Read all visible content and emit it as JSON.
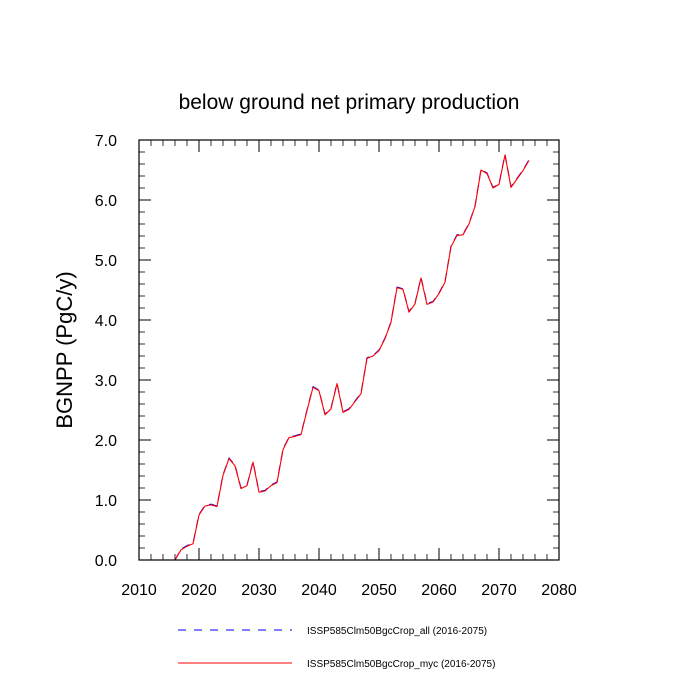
{
  "chart_data": {
    "type": "line",
    "title": "below ground net primary production",
    "ylabel": "BGNPP  (PgC/y)",
    "xlabel": "",
    "xlim": [
      2010,
      2080
    ],
    "ylim": [
      0.0,
      7.0
    ],
    "x_ticks": [
      2010,
      2020,
      2030,
      2040,
      2050,
      2060,
      2070,
      2080
    ],
    "x_tick_labels": [
      "2010",
      "2020",
      "2030",
      "2040",
      "2050",
      "2060",
      "2070",
      "2080"
    ],
    "y_ticks": [
      0,
      1,
      2,
      3,
      4,
      5,
      6,
      7
    ],
    "y_tick_labels": [
      "0.0",
      "1.0",
      "2.0",
      "3.0",
      "4.0",
      "5.0",
      "6.0",
      "7.0"
    ],
    "grid": false,
    "legend_position": "bottom",
    "x": [
      2016,
      2017,
      2018,
      2019,
      2020,
      2021,
      2022,
      2023,
      2024,
      2025,
      2026,
      2027,
      2028,
      2029,
      2030,
      2031,
      2032,
      2033,
      2034,
      2035,
      2036,
      2037,
      2038,
      2039,
      2040,
      2041,
      2042,
      2043,
      2044,
      2045,
      2046,
      2047,
      2048,
      2049,
      2050,
      2051,
      2052,
      2053,
      2054,
      2055,
      2056,
      2057,
      2058,
      2059,
      2060,
      2061,
      2062,
      2063,
      2064,
      2065,
      2066,
      2067,
      2068,
      2069,
      2070,
      2071,
      2072,
      2073,
      2074,
      2075
    ],
    "series": [
      {
        "name": "ISSP585Clm50BgcCrop_all (2016-2075)",
        "color": "#0000ff",
        "dash": "dashed",
        "values": [
          0.0,
          0.18,
          0.24,
          0.28,
          0.76,
          0.91,
          0.93,
          0.9,
          1.42,
          1.7,
          1.58,
          1.2,
          1.25,
          1.64,
          1.14,
          1.16,
          1.25,
          1.3,
          1.85,
          2.05,
          2.07,
          2.1,
          2.5,
          2.89,
          2.83,
          2.43,
          2.53,
          2.95,
          2.47,
          2.52,
          2.65,
          2.78,
          3.37,
          3.41,
          3.5,
          3.7,
          3.97,
          4.55,
          4.52,
          4.14,
          4.28,
          4.71,
          4.27,
          4.31,
          4.45,
          4.64,
          5.23,
          5.42,
          5.43,
          5.61,
          5.9,
          6.51,
          6.45,
          6.21,
          6.27,
          6.76,
          6.22,
          6.36,
          6.5,
          6.67
        ]
      },
      {
        "name": "ISSP585Clm50BgcCrop_myc (2016-2075)",
        "color": "#ff0000",
        "dash": "solid",
        "values": [
          0.0,
          0.17,
          0.23,
          0.27,
          0.75,
          0.9,
          0.92,
          0.89,
          1.41,
          1.69,
          1.57,
          1.19,
          1.24,
          1.63,
          1.13,
          1.15,
          1.24,
          1.29,
          1.84,
          2.04,
          2.06,
          2.09,
          2.49,
          2.88,
          2.82,
          2.42,
          2.52,
          2.94,
          2.46,
          2.51,
          2.64,
          2.77,
          3.36,
          3.4,
          3.49,
          3.69,
          3.96,
          4.54,
          4.51,
          4.13,
          4.27,
          4.7,
          4.26,
          4.3,
          4.44,
          4.63,
          5.22,
          5.41,
          5.42,
          5.6,
          5.89,
          6.5,
          6.44,
          6.2,
          6.26,
          6.75,
          6.21,
          6.35,
          6.49,
          6.66
        ]
      }
    ]
  }
}
